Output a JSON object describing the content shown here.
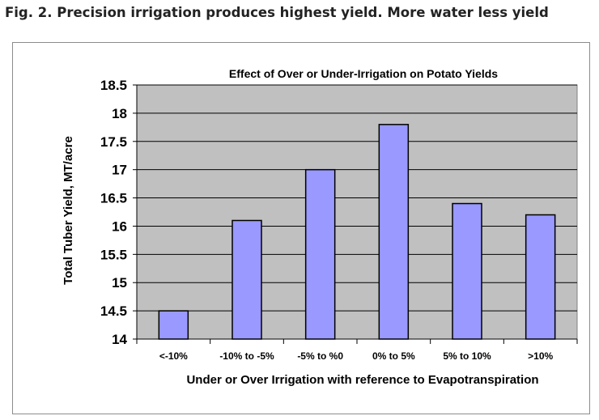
{
  "caption": "Fig. 2. Precision irrigation produces highest yield. More water less yield",
  "chart_data": {
    "type": "bar",
    "title": "Effect of Over or Under-Irrigation on Potato Yields",
    "xlabel": "Under or Over Irrigation with reference to Evapotranspiration",
    "ylabel": "Total Tuber Yield, MT/acre",
    "categories": [
      "<-10%",
      "-10% to -5%",
      "-5% to %0",
      "0% to 5%",
      "5% to 10%",
      ">10%"
    ],
    "values": [
      14.5,
      16.1,
      17.0,
      17.8,
      16.4,
      16.2
    ],
    "ylim": [
      14,
      18.5
    ],
    "yticks": [
      "14",
      "14.5",
      "15",
      "15.5",
      "16",
      "16.5",
      "17",
      "17.5",
      "18",
      "18.5"
    ],
    "grid": true,
    "legend": "none",
    "colors": {
      "bar_fill": "#9999ff",
      "bar_stroke": "#000000",
      "plot_background": "#c0c0c0",
      "gridline": "#000000"
    }
  }
}
